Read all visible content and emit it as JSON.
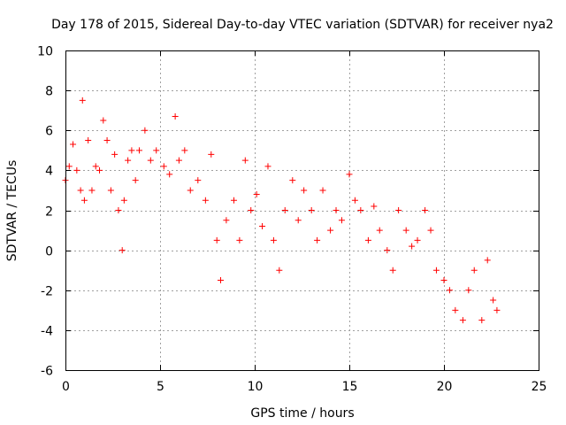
{
  "chart_data": {
    "type": "scatter",
    "title": "Day 178 of 2015, Sidereal Day-to-day VTEC variation (SDTVAR) for receiver nya2",
    "xlabel": "GPS time / hours",
    "ylabel": "SDTVAR / TECUs",
    "xlim": [
      0,
      25
    ],
    "ylim": [
      -6,
      10
    ],
    "xticks": [
      0,
      5,
      10,
      15,
      20,
      25
    ],
    "yticks": [
      -6,
      -4,
      -2,
      0,
      2,
      4,
      6,
      8,
      10
    ],
    "grid": true,
    "marker": "+",
    "color": "#ff0000",
    "series": [
      {
        "name": "SDTVAR",
        "x": [
          0.0,
          0.2,
          0.4,
          0.6,
          0.8,
          0.9,
          1.0,
          1.2,
          1.4,
          1.6,
          1.8,
          2.0,
          2.2,
          2.4,
          2.6,
          2.8,
          3.0,
          3.1,
          3.3,
          3.5,
          3.7,
          3.9,
          4.2,
          4.5,
          4.8,
          5.2,
          5.5,
          5.8,
          6.0,
          6.3,
          6.6,
          7.0,
          7.4,
          7.7,
          8.0,
          8.2,
          8.5,
          8.9,
          9.2,
          9.5,
          9.8,
          10.1,
          10.4,
          10.7,
          11.0,
          11.3,
          11.6,
          12.0,
          12.3,
          12.6,
          13.0,
          13.3,
          13.6,
          14.0,
          14.3,
          14.6,
          15.0,
          15.3,
          15.6,
          16.0,
          16.3,
          16.6,
          17.0,
          17.3,
          17.6,
          18.0,
          18.3,
          18.6,
          19.0,
          19.3,
          19.6,
          20.0,
          20.3,
          20.6,
          21.0,
          21.3,
          21.6,
          22.0,
          22.3,
          22.6,
          22.8
        ],
        "y": [
          3.5,
          4.2,
          5.3,
          4.0,
          3.0,
          7.5,
          2.5,
          5.5,
          3.0,
          4.2,
          4.0,
          6.5,
          5.5,
          3.0,
          4.8,
          2.0,
          0.0,
          2.5,
          4.5,
          5.0,
          3.5,
          5.0,
          6.0,
          4.5,
          5.0,
          4.2,
          3.8,
          6.7,
          4.5,
          5.0,
          3.0,
          3.5,
          2.5,
          4.8,
          0.5,
          -1.5,
          1.5,
          2.5,
          0.5,
          4.5,
          2.0,
          2.8,
          1.2,
          4.2,
          0.5,
          -1.0,
          2.0,
          3.5,
          1.5,
          3.0,
          2.0,
          0.5,
          3.0,
          1.0,
          2.0,
          1.5,
          3.8,
          2.5,
          2.0,
          0.5,
          2.2,
          1.0,
          0.0,
          -1.0,
          2.0,
          1.0,
          0.2,
          0.5,
          2.0,
          1.0,
          -1.0,
          -1.5,
          -2.0,
          -3.0,
          -3.5,
          -2.0,
          -1.0,
          -3.5,
          -0.5,
          -2.5,
          -3.0
        ]
      }
    ]
  }
}
